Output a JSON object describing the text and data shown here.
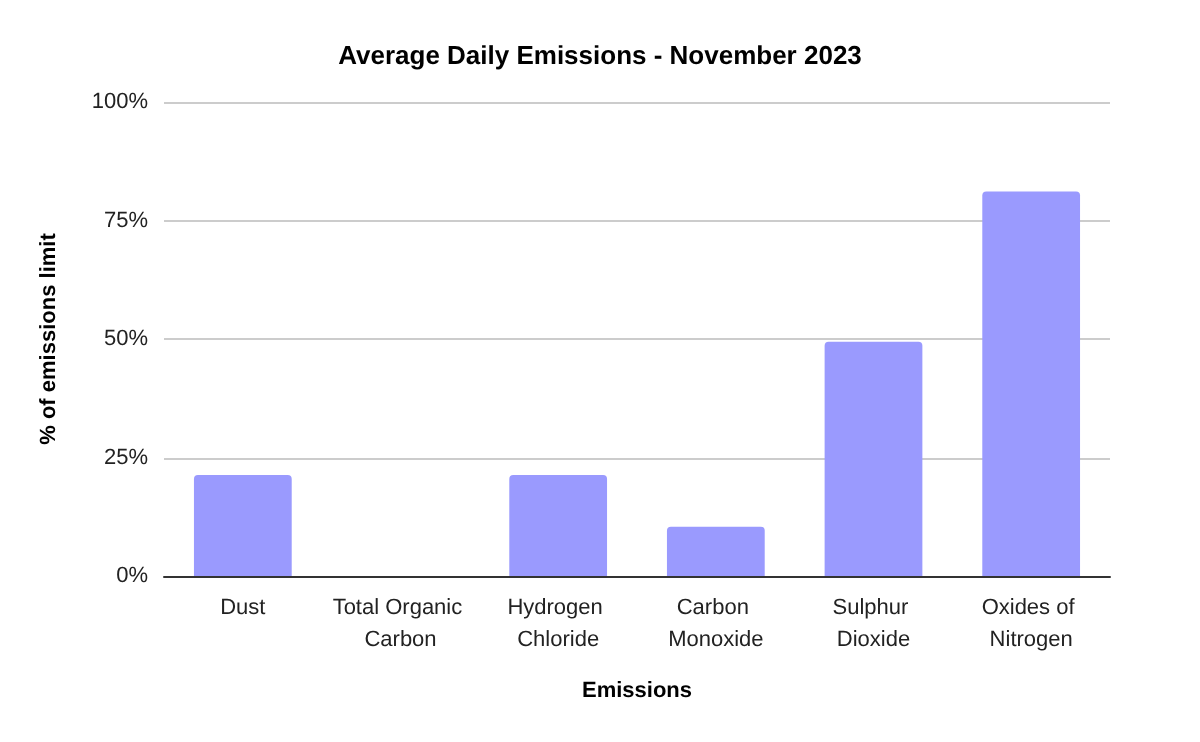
{
  "chart_data": {
    "type": "bar",
    "title": "Average Daily Emissions - November 2023",
    "xlabel": "Emissions",
    "ylabel": "% of emissions limit",
    "categories": [
      "Dust",
      "Total Organic Carbon",
      "Hydrogen Chloride",
      "Carbon Monoxide",
      "Sulphur Dioxide",
      "Oxides of Nitrogen"
    ],
    "values": [
      21.3,
      0,
      21.3,
      10.4,
      49.4,
      81.1
    ],
    "color": "#9a9afe",
    "ylim": [
      0,
      100
    ],
    "yticks": [
      {
        "value": 0,
        "label": "0%"
      },
      {
        "value": 25,
        "label": "25%"
      },
      {
        "value": 50,
        "label": "50%"
      },
      {
        "value": 75,
        "label": "75%"
      },
      {
        "value": 100,
        "label": "100%"
      }
    ],
    "grid": "y"
  }
}
